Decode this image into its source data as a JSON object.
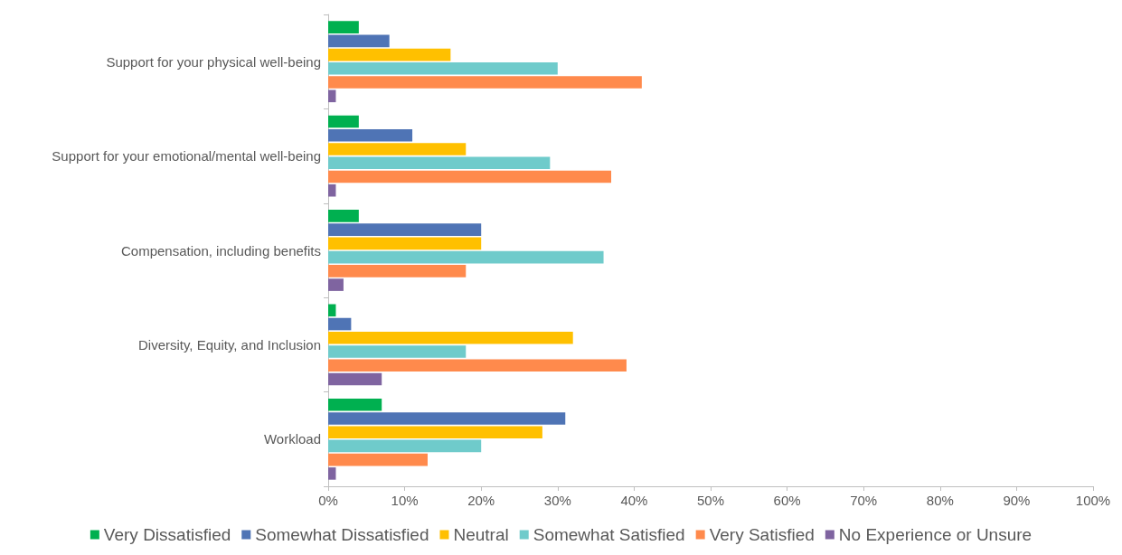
{
  "chart_data": {
    "type": "bar",
    "orientation": "horizontal",
    "categories": [
      "Support for your physical well-being",
      "Support for your emotional/mental well-being",
      "Compensation, including benefits",
      "Diversity, Equity, and Inclusion",
      "Workload"
    ],
    "series": [
      {
        "name": "Very Dissatisfied",
        "color": "#00b050",
        "values": [
          4,
          4,
          4,
          1,
          7
        ]
      },
      {
        "name": "Somewhat Dissatisfied",
        "color": "#4f74b5",
        "values": [
          8,
          11,
          20,
          3,
          31
        ]
      },
      {
        "name": "Neutral",
        "color": "#ffc000",
        "values": [
          16,
          18,
          20,
          32,
          28
        ]
      },
      {
        "name": "Somewhat Satisfied",
        "color": "#6fcbcb",
        "values": [
          30,
          29,
          36,
          18,
          20
        ]
      },
      {
        "name": "Very Satisfied",
        "color": "#ff8a4c",
        "values": [
          41,
          37,
          18,
          39,
          13
        ]
      },
      {
        "name": "No Experience or Unsure",
        "color": "#7f64a0",
        "values": [
          1,
          1,
          2,
          7,
          1
        ]
      }
    ],
    "xlim": [
      0,
      100
    ],
    "xticks": [
      {
        "value": 0,
        "label": "0%"
      },
      {
        "value": 10,
        "label": "10%"
      },
      {
        "value": 20,
        "label": "20%"
      },
      {
        "value": 30,
        "label": "30%"
      },
      {
        "value": 40,
        "label": "40%"
      },
      {
        "value": 50,
        "label": "50%"
      },
      {
        "value": 60,
        "label": "60%"
      },
      {
        "value": 70,
        "label": "70%"
      },
      {
        "value": 80,
        "label": "80%"
      },
      {
        "value": 90,
        "label": "90%"
      },
      {
        "value": 100,
        "label": "100%"
      }
    ],
    "grid": false,
    "legend": "bottom"
  }
}
